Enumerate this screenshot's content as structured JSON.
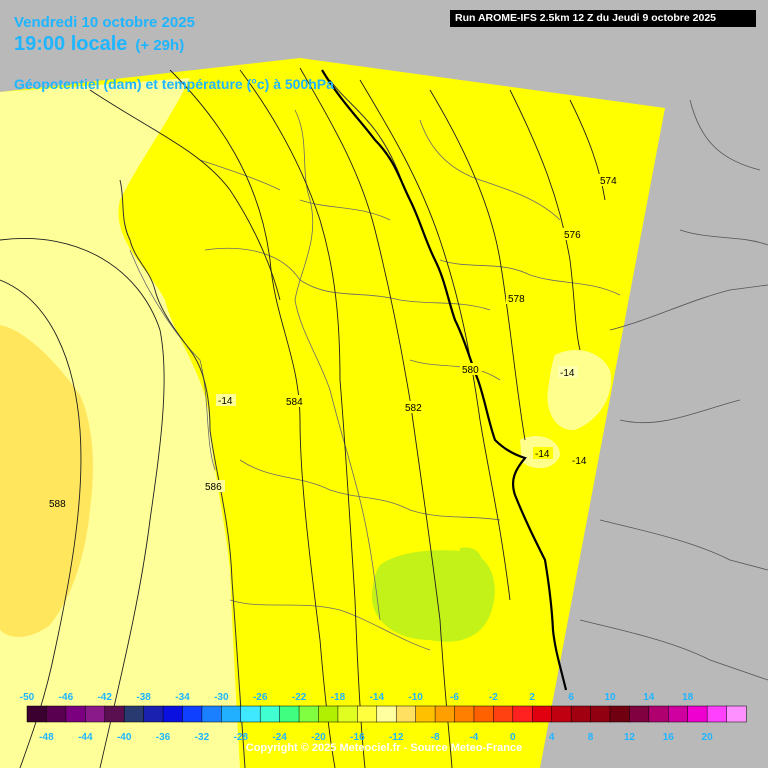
{
  "header": {
    "date_line": "Vendredi 10 octobre 2025",
    "time_line": "19:00 locale",
    "lead_time": "(+ 29h)",
    "parameter": "Géopotentiel (dam) et température (°c) à 500hPa",
    "run_info": "Run AROME-IFS 2.5km 12 Z du Jeudi 9 octobre 2025"
  },
  "footer": {
    "copyright": "Copyright © 2025 Meteociel.fr - Source Meteo-France"
  },
  "colorbar": {
    "top_labels": [
      "-50",
      "-46",
      "-42",
      "-38",
      "-34",
      "-30",
      "-26",
      "-22",
      "-18",
      "-14",
      "-10",
      "-6",
      "-2",
      "2",
      "6",
      "10",
      "14",
      "18"
    ],
    "bottom_labels": [
      "-48",
      "-44",
      "-40",
      "-36",
      "-32",
      "-28",
      "-24",
      "-20",
      "-16",
      "-12",
      "-8",
      "-4",
      "0",
      "4",
      "8",
      "12",
      "16",
      "20"
    ],
    "colors": [
      "#3b0030",
      "#5a0050",
      "#7a0080",
      "#8a1a8a",
      "#5a1050",
      "#283a70",
      "#1a20b0",
      "#0a10e0",
      "#1040ff",
      "#1a80ff",
      "#20b0ff",
      "#40e8ff",
      "#40ffd0",
      "#40ff80",
      "#80ff40",
      "#b0f000",
      "#e0ff20",
      "#ffff40",
      "#ffffa0",
      "#ffe060",
      "#ffc000",
      "#ffa000",
      "#ff8000",
      "#ff6000",
      "#ff4010",
      "#ff2020",
      "#e00010",
      "#c00010",
      "#a00010",
      "#900010",
      "#700010",
      "#800040",
      "#b00070",
      "#d000a0",
      "#f000d0",
      "#ff40ff",
      "#ff90ff"
    ]
  },
  "map_labels": {
    "geopotential_isolines": [
      "574",
      "576",
      "578",
      "580",
      "582",
      "584",
      "586",
      "588"
    ],
    "temperature_labels": [
      "-14",
      "-14",
      "-14",
      "-14"
    ]
  },
  "colors": {
    "accent_text": "#1fb5ff",
    "domain_fill": "#ffff00",
    "outside_fill": "#b9b9b9",
    "warm_band": "#ffff99",
    "warmer_patch": "#ffe65c",
    "cool_patch": "#c2f218"
  }
}
